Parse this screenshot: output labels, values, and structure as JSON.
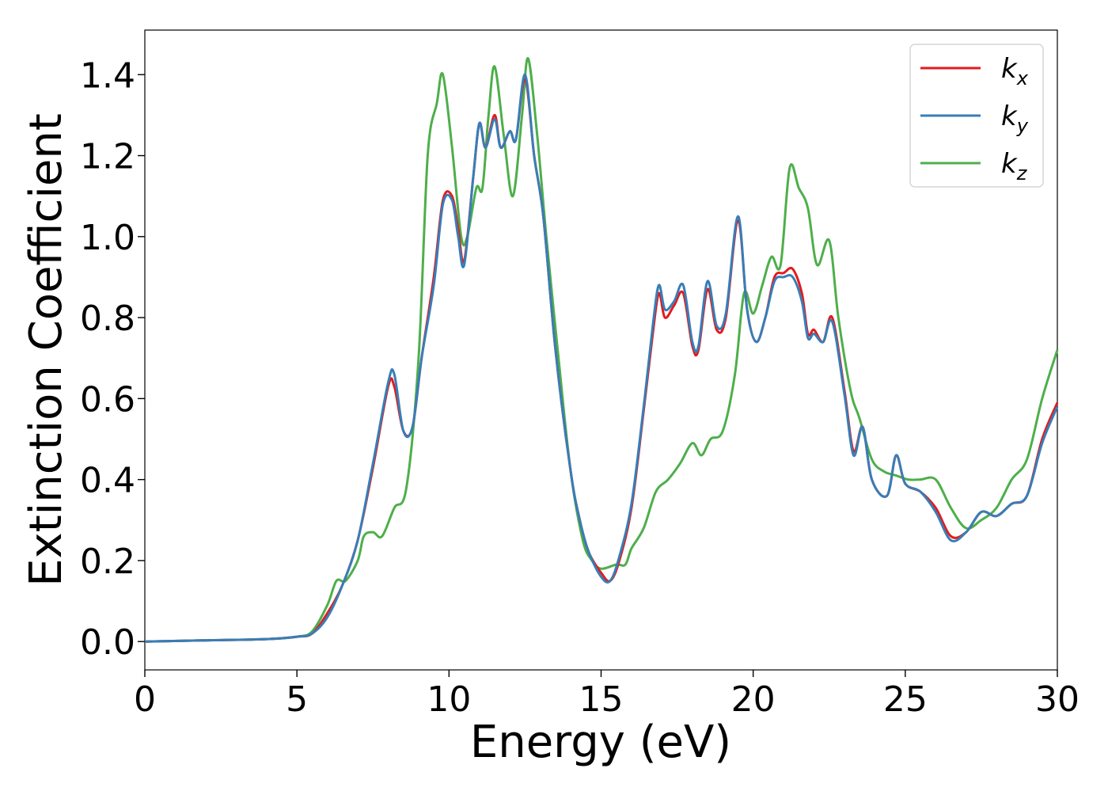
{
  "chart_data": {
    "type": "line",
    "title": "",
    "xlabel": "Energy (eV)",
    "ylabel": "Extinction Coefficient",
    "xlim": [
      0,
      30
    ],
    "ylim": [
      -0.07,
      1.51
    ],
    "xticks": [
      0,
      5,
      10,
      15,
      20,
      25,
      30
    ],
    "yticks": [
      0.0,
      0.2,
      0.4,
      0.6,
      0.8,
      1.0,
      1.2,
      1.4
    ],
    "xtick_labels": [
      "0",
      "5",
      "10",
      "15",
      "20",
      "25",
      "30"
    ],
    "ytick_labels": [
      "0.0",
      "0.2",
      "0.4",
      "0.6",
      "0.8",
      "1.0",
      "1.2",
      "1.4"
    ],
    "grid": false,
    "legend_position": "top-right",
    "series": [
      {
        "name": "k",
        "subscript": "x",
        "color": "#e41a1c",
        "points": [
          [
            0,
            0
          ],
          [
            2,
            0.003
          ],
          [
            4,
            0.006
          ],
          [
            5,
            0.012
          ],
          [
            5.5,
            0.02
          ],
          [
            6,
            0.07
          ],
          [
            6.5,
            0.14
          ],
          [
            7,
            0.25
          ],
          [
            7.5,
            0.43
          ],
          [
            8,
            0.63
          ],
          [
            8.2,
            0.63
          ],
          [
            8.5,
            0.52
          ],
          [
            8.8,
            0.53
          ],
          [
            9.1,
            0.7
          ],
          [
            9.5,
            0.9
          ],
          [
            9.8,
            1.09
          ],
          [
            10.1,
            1.1
          ],
          [
            10.3,
            1.02
          ],
          [
            10.5,
            0.94
          ],
          [
            10.8,
            1.15
          ],
          [
            11,
            1.28
          ],
          [
            11.2,
            1.22
          ],
          [
            11.5,
            1.3
          ],
          [
            11.7,
            1.22
          ],
          [
            12,
            1.26
          ],
          [
            12.2,
            1.24
          ],
          [
            12.5,
            1.39
          ],
          [
            12.8,
            1.2
          ],
          [
            13.1,
            1.05
          ],
          [
            13.5,
            0.72
          ],
          [
            14,
            0.42
          ],
          [
            14.3,
            0.3
          ],
          [
            14.6,
            0.22
          ],
          [
            15,
            0.17
          ],
          [
            15.3,
            0.15
          ],
          [
            15.6,
            0.2
          ],
          [
            16,
            0.33
          ],
          [
            16.4,
            0.57
          ],
          [
            16.7,
            0.76
          ],
          [
            16.9,
            0.86
          ],
          [
            17.1,
            0.8
          ],
          [
            17.4,
            0.83
          ],
          [
            17.7,
            0.86
          ],
          [
            18,
            0.73
          ],
          [
            18.2,
            0.72
          ],
          [
            18.5,
            0.87
          ],
          [
            18.8,
            0.77
          ],
          [
            19.1,
            0.8
          ],
          [
            19.5,
            1.04
          ],
          [
            19.8,
            0.82
          ],
          [
            20.1,
            0.74
          ],
          [
            20.4,
            0.8
          ],
          [
            20.7,
            0.9
          ],
          [
            21,
            0.91
          ],
          [
            21.3,
            0.92
          ],
          [
            21.6,
            0.86
          ],
          [
            21.8,
            0.76
          ],
          [
            22,
            0.77
          ],
          [
            22.3,
            0.74
          ],
          [
            22.6,
            0.8
          ],
          [
            23,
            0.62
          ],
          [
            23.3,
            0.47
          ],
          [
            23.6,
            0.53
          ],
          [
            23.9,
            0.4
          ],
          [
            24.4,
            0.36
          ],
          [
            24.7,
            0.46
          ],
          [
            25,
            0.39
          ],
          [
            25.5,
            0.37
          ],
          [
            26,
            0.33
          ],
          [
            26.5,
            0.26
          ],
          [
            27,
            0.27
          ],
          [
            27.5,
            0.32
          ],
          [
            28,
            0.31
          ],
          [
            28.5,
            0.34
          ],
          [
            29,
            0.36
          ],
          [
            29.5,
            0.5
          ],
          [
            30,
            0.59
          ]
        ]
      },
      {
        "name": "k",
        "subscript": "y",
        "color": "#377eb8",
        "points": [
          [
            0,
            0
          ],
          [
            2,
            0.003
          ],
          [
            4,
            0.006
          ],
          [
            5,
            0.012
          ],
          [
            5.5,
            0.02
          ],
          [
            6,
            0.06
          ],
          [
            6.5,
            0.14
          ],
          [
            7,
            0.25
          ],
          [
            7.5,
            0.44
          ],
          [
            8,
            0.64
          ],
          [
            8.2,
            0.66
          ],
          [
            8.5,
            0.52
          ],
          [
            8.8,
            0.53
          ],
          [
            9.1,
            0.7
          ],
          [
            9.5,
            0.88
          ],
          [
            9.8,
            1.08
          ],
          [
            10.1,
            1.09
          ],
          [
            10.3,
            1.0
          ],
          [
            10.5,
            0.93
          ],
          [
            10.8,
            1.15
          ],
          [
            11,
            1.28
          ],
          [
            11.2,
            1.22
          ],
          [
            11.5,
            1.29
          ],
          [
            11.7,
            1.22
          ],
          [
            12,
            1.26
          ],
          [
            12.2,
            1.24
          ],
          [
            12.5,
            1.4
          ],
          [
            12.8,
            1.2
          ],
          [
            13.1,
            1.05
          ],
          [
            13.5,
            0.72
          ],
          [
            14,
            0.42
          ],
          [
            14.3,
            0.3
          ],
          [
            14.6,
            0.22
          ],
          [
            15,
            0.16
          ],
          [
            15.3,
            0.15
          ],
          [
            15.6,
            0.21
          ],
          [
            16,
            0.34
          ],
          [
            16.4,
            0.58
          ],
          [
            16.7,
            0.78
          ],
          [
            16.9,
            0.88
          ],
          [
            17.1,
            0.82
          ],
          [
            17.4,
            0.84
          ],
          [
            17.7,
            0.88
          ],
          [
            18,
            0.74
          ],
          [
            18.2,
            0.73
          ],
          [
            18.5,
            0.89
          ],
          [
            18.8,
            0.78
          ],
          [
            19.1,
            0.81
          ],
          [
            19.5,
            1.05
          ],
          [
            19.8,
            0.82
          ],
          [
            20.1,
            0.74
          ],
          [
            20.4,
            0.8
          ],
          [
            20.7,
            0.89
          ],
          [
            21,
            0.9
          ],
          [
            21.3,
            0.9
          ],
          [
            21.6,
            0.84
          ],
          [
            21.8,
            0.75
          ],
          [
            22,
            0.76
          ],
          [
            22.3,
            0.74
          ],
          [
            22.6,
            0.79
          ],
          [
            23,
            0.61
          ],
          [
            23.3,
            0.46
          ],
          [
            23.6,
            0.53
          ],
          [
            23.9,
            0.4
          ],
          [
            24.4,
            0.36
          ],
          [
            24.7,
            0.46
          ],
          [
            25,
            0.39
          ],
          [
            25.5,
            0.37
          ],
          [
            26,
            0.32
          ],
          [
            26.5,
            0.25
          ],
          [
            27,
            0.27
          ],
          [
            27.5,
            0.32
          ],
          [
            28,
            0.31
          ],
          [
            28.5,
            0.34
          ],
          [
            29,
            0.36
          ],
          [
            29.5,
            0.49
          ],
          [
            30,
            0.58
          ]
        ]
      },
      {
        "name": "k",
        "subscript": "z",
        "color": "#4daf4a",
        "points": [
          [
            0,
            0
          ],
          [
            2,
            0.003
          ],
          [
            4,
            0.006
          ],
          [
            5,
            0.012
          ],
          [
            5.5,
            0.025
          ],
          [
            6,
            0.09
          ],
          [
            6.3,
            0.15
          ],
          [
            6.6,
            0.15
          ],
          [
            7,
            0.2
          ],
          [
            7.2,
            0.26
          ],
          [
            7.5,
            0.27
          ],
          [
            7.8,
            0.26
          ],
          [
            8.2,
            0.33
          ],
          [
            8.6,
            0.38
          ],
          [
            9,
            0.7
          ],
          [
            9.3,
            1.2
          ],
          [
            9.6,
            1.33
          ],
          [
            9.8,
            1.4
          ],
          [
            10.1,
            1.22
          ],
          [
            10.4,
            1.0
          ],
          [
            10.6,
            1.0
          ],
          [
            10.9,
            1.12
          ],
          [
            11.1,
            1.12
          ],
          [
            11.3,
            1.3
          ],
          [
            11.5,
            1.42
          ],
          [
            11.8,
            1.25
          ],
          [
            12.1,
            1.1
          ],
          [
            12.4,
            1.3
          ],
          [
            12.6,
            1.44
          ],
          [
            12.9,
            1.25
          ],
          [
            13.2,
            1.0
          ],
          [
            13.6,
            0.7
          ],
          [
            14,
            0.42
          ],
          [
            14.4,
            0.25
          ],
          [
            14.7,
            0.2
          ],
          [
            15,
            0.18
          ],
          [
            15.5,
            0.19
          ],
          [
            15.8,
            0.19
          ],
          [
            16,
            0.23
          ],
          [
            16.4,
            0.28
          ],
          [
            16.8,
            0.37
          ],
          [
            17.2,
            0.4
          ],
          [
            17.6,
            0.44
          ],
          [
            18,
            0.49
          ],
          [
            18.3,
            0.46
          ],
          [
            18.6,
            0.5
          ],
          [
            19,
            0.52
          ],
          [
            19.4,
            0.66
          ],
          [
            19.7,
            0.86
          ],
          [
            20,
            0.81
          ],
          [
            20.3,
            0.88
          ],
          [
            20.6,
            0.95
          ],
          [
            20.9,
            0.93
          ],
          [
            21.2,
            1.17
          ],
          [
            21.5,
            1.12
          ],
          [
            21.8,
            1.07
          ],
          [
            22.1,
            0.93
          ],
          [
            22.5,
            0.99
          ],
          [
            22.8,
            0.8
          ],
          [
            23.2,
            0.62
          ],
          [
            23.5,
            0.55
          ],
          [
            23.9,
            0.45
          ],
          [
            24.3,
            0.42
          ],
          [
            24.7,
            0.41
          ],
          [
            25.1,
            0.4
          ],
          [
            25.5,
            0.4
          ],
          [
            26,
            0.4
          ],
          [
            26.5,
            0.33
          ],
          [
            27,
            0.28
          ],
          [
            27.5,
            0.3
          ],
          [
            28,
            0.33
          ],
          [
            28.5,
            0.4
          ],
          [
            29,
            0.45
          ],
          [
            29.5,
            0.6
          ],
          [
            30,
            0.72
          ]
        ]
      }
    ]
  }
}
